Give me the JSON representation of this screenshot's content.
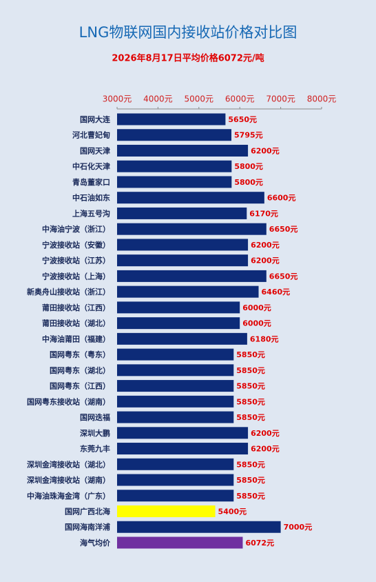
{
  "chart_data": {
    "type": "hbar",
    "title": "LNG物联网国内接收站价格对比图",
    "subtitle": "2026年8月17日平均价格6072元/吨",
    "categories": [
      "国网大连",
      "河北曹妃甸",
      "国网天津",
      "中石化天津",
      "青岛董家口",
      "中石油如东",
      "上海五号沟",
      "中海油宁波（浙江）",
      "宁波接收站（安徽）",
      "宁波接收站（江苏）",
      "宁波接收站（上海）",
      "新奥舟山接收站（浙江）",
      "莆田接收站（江西）",
      "莆田接收站（湖北）",
      "中海油莆田（福建）",
      "国网粤东（粤东）",
      "国网粤东（湖北）",
      "国网粤东（江西）",
      "国网粤东接收站（湖南）",
      "国网迭福",
      "深圳大鹏",
      "东莞九丰",
      "深圳金湾接收站（湖北）",
      "深圳金湾接收站（湖南）",
      "中海油珠海金湾（广东）",
      "国网广西北海",
      "国网海南洋浦",
      "海气均价"
    ],
    "values": [
      5650,
      5795,
      6200,
      5800,
      5800,
      6600,
      6170,
      6650,
      6200,
      6200,
      6650,
      6460,
      6000,
      6000,
      6180,
      5850,
      5850,
      5850,
      5850,
      5850,
      6200,
      6200,
      5850,
      5850,
      5850,
      5400,
      7000,
      6072
    ],
    "value_labels": [
      "5650元",
      "5795元",
      "6200元",
      "5800元",
      "5800元",
      "6600元",
      "6170元",
      "6650元",
      "6200元",
      "6200元",
      "6650元",
      "6460元",
      "6000元",
      "6000元",
      "6180元",
      "5850元",
      "5850元",
      "5850元",
      "5850元",
      "5850元",
      "6200元",
      "6200元",
      "5850元",
      "5850元",
      "5850元",
      "5400元",
      "7000元",
      "6072元"
    ],
    "colors": [
      "#0d2b78",
      "#0d2b78",
      "#0d2b78",
      "#0d2b78",
      "#0d2b78",
      "#0d2b78",
      "#0d2b78",
      "#0d2b78",
      "#0d2b78",
      "#0d2b78",
      "#0d2b78",
      "#0d2b78",
      "#0d2b78",
      "#0d2b78",
      "#0d2b78",
      "#0d2b78",
      "#0d2b78",
      "#0d2b78",
      "#0d2b78",
      "#0d2b78",
      "#0d2b78",
      "#0d2b78",
      "#0d2b78",
      "#0d2b78",
      "#0d2b78",
      "#ffff00",
      "#0d2b78",
      "#7030a0"
    ],
    "xlim": [
      3000,
      8000
    ],
    "xticks": [
      {
        "value": 3000,
        "label": "3000元"
      },
      {
        "value": 4000,
        "label": "4000元"
      },
      {
        "value": 5000,
        "label": "5000元"
      },
      {
        "value": 6000,
        "label": "6000元"
      },
      {
        "value": 7000,
        "label": "7000元"
      },
      {
        "value": 8000,
        "label": "8000元"
      }
    ]
  }
}
